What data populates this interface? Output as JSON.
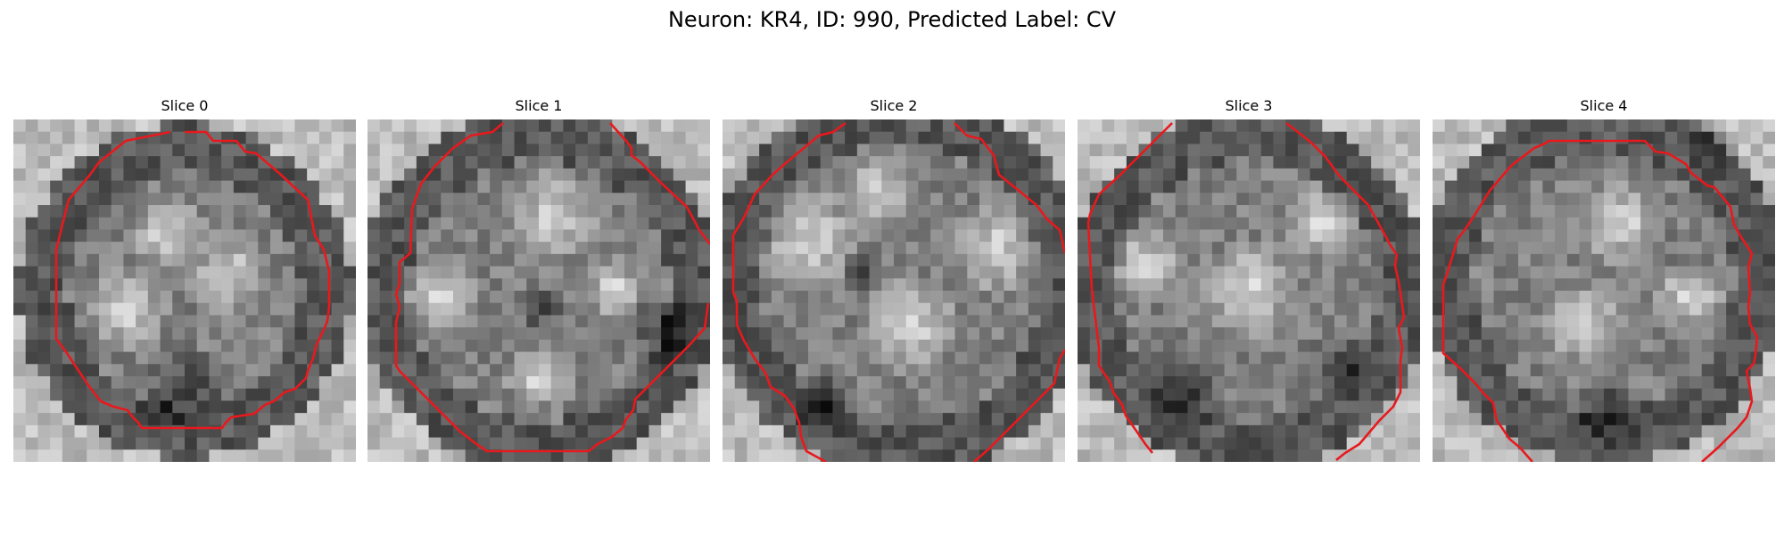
{
  "figure": {
    "title": "Neuron: KR4, ID: 990, Predicted Label: CV"
  },
  "slices": [
    {
      "title": "Slice 0"
    },
    {
      "title": "Slice 1"
    },
    {
      "title": "Slice 2"
    },
    {
      "title": "Slice 3"
    },
    {
      "title": "Slice 4"
    }
  ],
  "colors": {
    "contour": "#e8191d",
    "background": "#ffffff"
  }
}
